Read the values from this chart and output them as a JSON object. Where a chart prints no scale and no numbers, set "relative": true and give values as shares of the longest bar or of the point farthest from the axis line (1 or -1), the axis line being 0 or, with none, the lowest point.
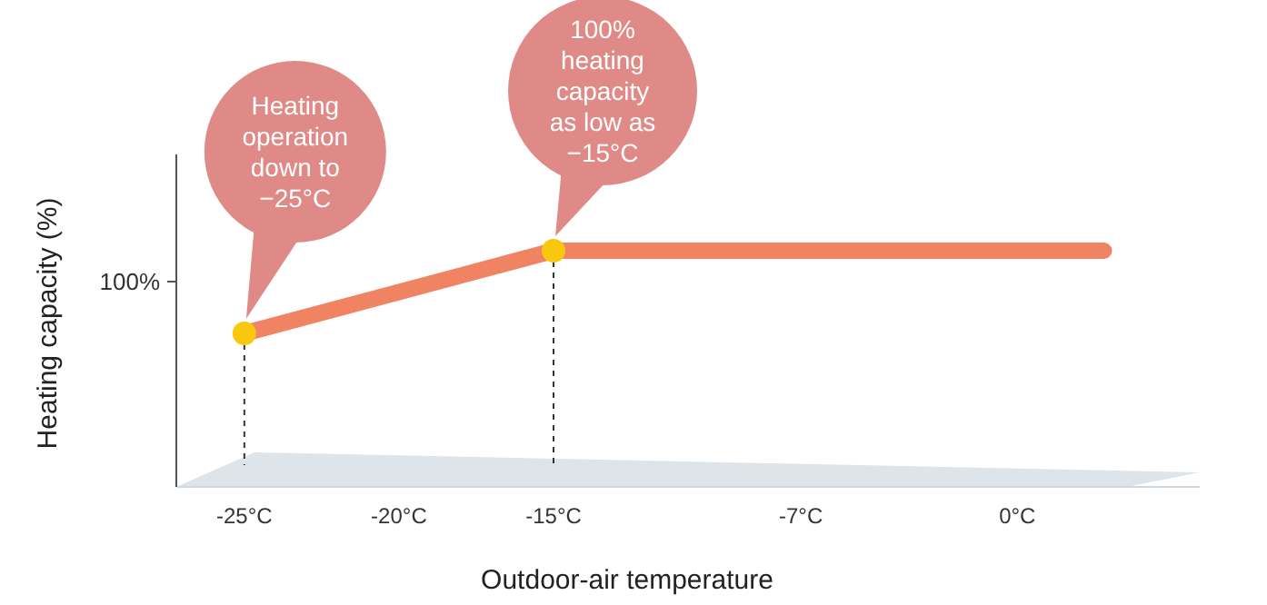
{
  "chart_data": {
    "type": "line",
    "relative": true,
    "xlabel": "Outdoor-air temperature",
    "ylabel": "Heating capacity (%)",
    "xlim": [
      -27.2,
      5.9
    ],
    "xticks": [
      {
        "value": -25,
        "label": "-25°C"
      },
      {
        "value": -20,
        "label": "-20°C"
      },
      {
        "value": -15,
        "label": "-15°C"
      },
      {
        "value": -7,
        "label": "-7°C"
      },
      {
        "value": 0,
        "label": "0°C"
      }
    ],
    "series": [
      {
        "color": "#f08462",
        "x": [
          -25,
          -15,
          2.8
        ],
        "values": [
          0.65,
          1,
          1
        ]
      },
      {
        "type": "scatter",
        "marker": "circle",
        "color": "#f9c80e",
        "x": [
          -25,
          -15
        ],
        "values": [
          0.65,
          1
        ]
      }
    ],
    "annotations": [
      "100%",
      "Heating\noperation\ndown to\n−25°C",
      "100%\nheating\ncapacity\nas low as\n−15°C"
    ]
  }
}
